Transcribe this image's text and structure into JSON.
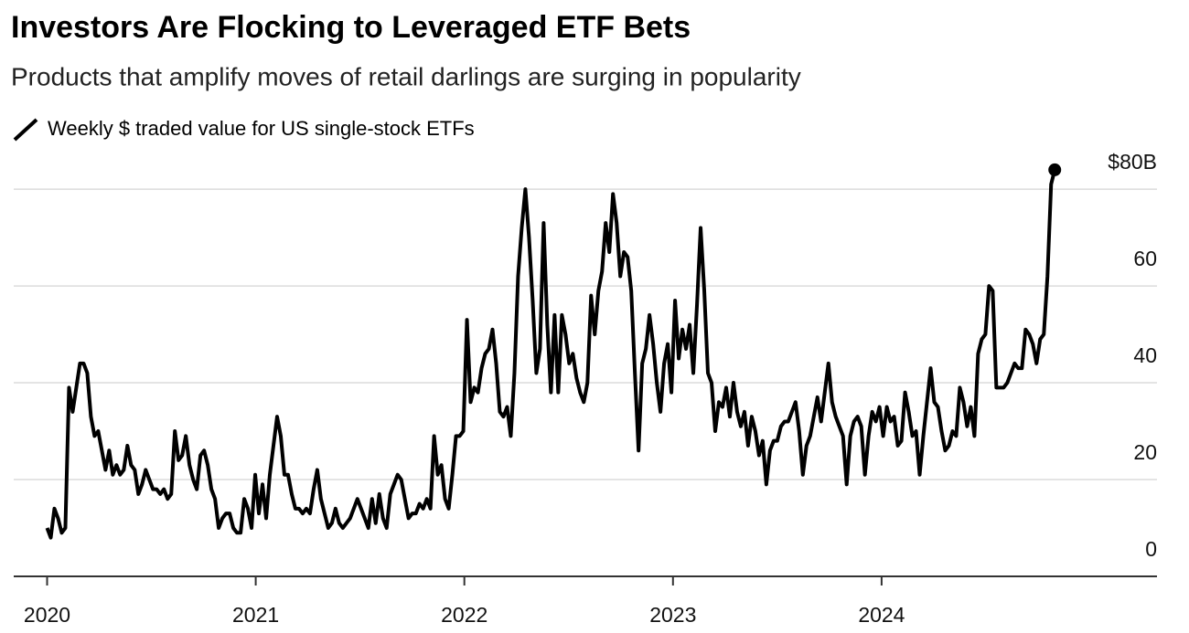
{
  "chart_data": {
    "type": "line",
    "title": "Investors Are Flocking to Leveraged ETF Bets",
    "subtitle": "Products that amplify moves of retail darlings are surging in popularity",
    "x": [
      2020,
      2020.0175,
      2020.035,
      2020.0525,
      2020.07,
      2020.0875,
      2020.105,
      2020.1225,
      2020.14,
      2020.1575,
      2020.175,
      2020.1925,
      2020.21,
      2020.2275,
      2020.245,
      2020.2625,
      2020.28,
      2020.2975,
      2020.315,
      2020.3325,
      2020.35,
      2020.3675,
      2020.385,
      2020.4025,
      2020.42,
      2020.4375,
      2020.455,
      2020.4725,
      2020.49,
      2020.5075,
      2020.525,
      2020.5425,
      2020.56,
      2020.5775,
      2020.595,
      2020.6125,
      2020.63,
      2020.6475,
      2020.665,
      2020.6825,
      2020.7,
      2020.7175,
      2020.735,
      2020.7525,
      2020.77,
      2020.7875,
      2020.805,
      2020.8225,
      2020.84,
      2020.8575,
      2020.875,
      2020.8925,
      2020.91,
      2020.9275,
      2020.945,
      2020.9625,
      2020.98,
      2020.9975,
      2021.015,
      2021.0325,
      2021.05,
      2021.0675,
      2021.085,
      2021.1025,
      2021.12,
      2021.1375,
      2021.155,
      2021.1725,
      2021.19,
      2021.2075,
      2021.225,
      2021.2425,
      2021.26,
      2021.2775,
      2021.295,
      2021.3125,
      2021.33,
      2021.3475,
      2021.365,
      2021.3825,
      2021.4,
      2021.4175,
      2021.435,
      2021.4525,
      2021.47,
      2021.4875,
      2021.505,
      2021.5225,
      2021.54,
      2021.5575,
      2021.575,
      2021.5925,
      2021.61,
      2021.6275,
      2021.645,
      2021.6625,
      2021.68,
      2021.6975,
      2021.715,
      2021.7325,
      2021.75,
      2021.7675,
      2021.785,
      2021.8025,
      2021.82,
      2021.8375,
      2021.855,
      2021.8725,
      2021.89,
      2021.9075,
      2021.925,
      2021.9425,
      2021.96,
      2021.9775,
      2021.995,
      2022.0125,
      2022.03,
      2022.0475,
      2022.065,
      2022.0825,
      2022.1,
      2022.1175,
      2022.135,
      2022.1525,
      2022.17,
      2022.1875,
      2022.205,
      2022.2225,
      2022.24,
      2022.2575,
      2022.275,
      2022.2925,
      2022.31,
      2022.3275,
      2022.345,
      2022.3625,
      2022.38,
      2022.3975,
      2022.415,
      2022.4325,
      2022.45,
      2022.4675,
      2022.485,
      2022.5025,
      2022.52,
      2022.5375,
      2022.555,
      2022.5725,
      2022.59,
      2022.6075,
      2022.625,
      2022.6425,
      2022.66,
      2022.6775,
      2022.695,
      2022.7125,
      2022.73,
      2022.7475,
      2022.765,
      2022.7825,
      2022.8,
      2022.8175,
      2022.835,
      2022.8525,
      2022.87,
      2022.8875,
      2022.905,
      2022.9225,
      2022.94,
      2022.9575,
      2022.975,
      2022.9925,
      2023.01,
      2023.0275,
      2023.045,
      2023.0625,
      2023.08,
      2023.0975,
      2023.115,
      2023.1325,
      2023.15,
      2023.1675,
      2023.185,
      2023.2025,
      2023.22,
      2023.2375,
      2023.255,
      2023.2725,
      2023.29,
      2023.3075,
      2023.325,
      2023.3425,
      2023.36,
      2023.3775,
      2023.395,
      2023.4125,
      2023.43,
      2023.4475,
      2023.465,
      2023.4825,
      2023.5,
      2023.5175,
      2023.535,
      2023.5525,
      2023.57,
      2023.5875,
      2023.605,
      2023.6225,
      2023.64,
      2023.6575,
      2023.675,
      2023.6925,
      2023.71,
      2023.7275,
      2023.745,
      2023.7625,
      2023.78,
      2023.7975,
      2023.815,
      2023.8325,
      2023.85,
      2023.8675,
      2023.885,
      2023.9025,
      2023.92,
      2023.9375,
      2023.955,
      2023.9725,
      2023.99,
      2024.0075,
      2024.025,
      2024.0425,
      2024.06,
      2024.0775,
      2024.095,
      2024.1125,
      2024.13,
      2024.1475,
      2024.165,
      2024.1825,
      2024.2,
      2024.2175,
      2024.235,
      2024.2525,
      2024.27,
      2024.2875,
      2024.305,
      2024.3225,
      2024.34,
      2024.3575,
      2024.375,
      2024.3925,
      2024.41,
      2024.4275,
      2024.445,
      2024.4625,
      2024.48,
      2024.4975,
      2024.515,
      2024.5325,
      2024.55,
      2024.5675,
      2024.585,
      2024.6025,
      2024.62,
      2024.6375,
      2024.655,
      2024.6725,
      2024.69,
      2024.7075,
      2024.725,
      2024.7425,
      2024.76,
      2024.7775,
      2024.795,
      2024.8125,
      2024.83
    ],
    "series": [
      {
        "name": "Weekly $ traded value for US single-stock ETFs",
        "color": "#000000",
        "values": [
          10,
          8,
          14,
          12,
          9,
          10,
          39,
          34,
          39,
          44,
          44,
          42,
          33,
          29,
          30,
          26,
          22,
          26,
          21,
          23,
          21,
          22,
          27,
          23,
          22,
          17,
          19,
          22,
          20,
          18,
          18,
          17,
          18,
          16,
          17,
          30,
          24,
          25,
          29,
          23,
          20,
          18,
          25,
          26,
          23,
          18,
          16,
          10,
          12,
          13,
          13,
          10,
          9,
          9,
          16,
          14,
          10,
          21,
          13,
          19,
          12,
          21,
          27,
          33,
          29,
          21,
          21,
          17,
          14,
          14,
          13,
          14,
          13,
          18,
          22,
          16,
          13,
          10,
          11,
          14,
          11,
          10,
          11,
          12,
          14,
          16,
          14,
          12,
          10,
          16,
          11,
          17,
          12,
          10,
          17,
          19,
          21,
          20,
          16,
          12,
          13,
          13,
          15,
          14,
          16,
          14,
          29,
          21,
          23,
          16,
          14,
          21,
          29,
          29,
          30,
          53,
          36,
          39,
          38,
          43,
          46,
          47,
          51,
          44,
          34,
          33,
          35,
          29,
          42,
          62,
          72,
          80,
          70,
          57,
          42,
          47,
          73,
          52,
          38,
          54,
          38,
          54,
          50,
          44,
          46,
          41,
          38,
          36,
          40,
          58,
          50,
          59,
          63,
          73,
          67,
          79,
          73,
          62,
          67,
          66,
          59,
          42,
          26,
          44,
          47,
          54,
          48,
          40,
          34,
          44,
          48,
          38,
          57,
          45,
          51,
          47,
          52,
          42,
          56,
          72,
          59,
          42,
          40,
          30,
          36,
          35,
          39,
          33,
          40,
          34,
          31,
          34,
          27,
          33,
          30,
          25,
          28,
          19,
          26,
          28,
          28,
          31,
          32,
          32,
          34,
          36,
          30,
          21,
          27,
          29,
          33,
          37,
          32,
          38,
          44,
          36,
          33,
          31,
          29,
          19,
          29,
          32,
          33,
          31,
          21,
          29,
          34,
          32,
          35,
          29,
          35,
          32,
          33,
          27,
          28,
          38,
          34,
          29,
          30,
          21,
          29,
          36,
          43,
          36,
          35,
          30,
          26,
          27,
          30,
          29,
          39,
          36,
          31,
          35,
          29,
          46,
          49,
          50,
          60,
          59,
          39,
          39,
          39,
          40,
          42,
          44,
          43,
          43,
          51,
          50,
          48,
          44,
          49,
          50,
          62,
          81,
          84
        ]
      }
    ],
    "xlim": [
      2019.84,
      2025.32
    ],
    "xticks": [
      2020,
      2021,
      2022,
      2023,
      2024
    ],
    "ylim": [
      0,
      87
    ],
    "yticks": [
      0,
      20,
      40,
      60,
      {
        "value": 80,
        "label": "$80B"
      }
    ],
    "grid": true
  }
}
